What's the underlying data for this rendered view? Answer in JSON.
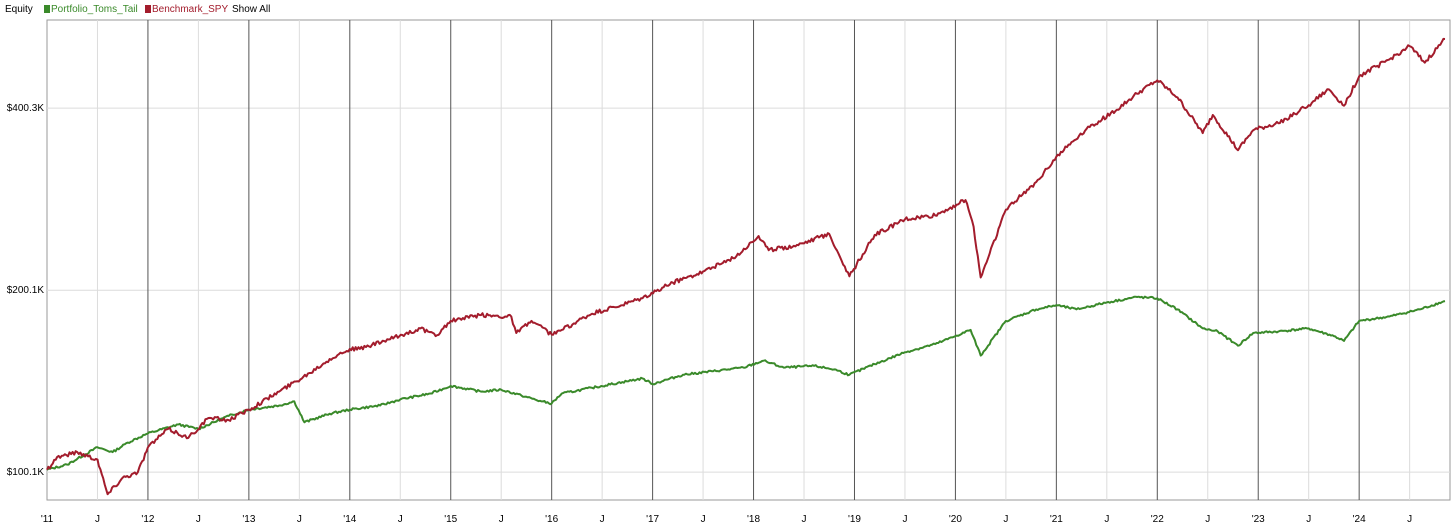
{
  "chart_data": {
    "type": "line",
    "title": "Equity",
    "legend": {
      "placement": "top-left",
      "show_all_label": "Show All"
    },
    "x_ticks": [
      "'11",
      "J",
      "'12",
      "J",
      "'13",
      "J",
      "'14",
      "J",
      "'15",
      "J",
      "'16",
      "J",
      "'17",
      "J",
      "'18",
      "J",
      "'19",
      "J",
      "'20",
      "J",
      "'21",
      "J",
      "'22",
      "J",
      "'23",
      "J",
      "'24",
      "J"
    ],
    "xlim": [
      2011.0,
      2024.9
    ],
    "y_ticks": [
      {
        "value": 100.1,
        "label": "$100.1K"
      },
      {
        "value": 200.1,
        "label": "$200.1K"
      },
      {
        "value": 400.3,
        "label": "$400.3K"
      }
    ],
    "ylim": [
      90,
      560
    ],
    "y_scale": "log",
    "grid": true,
    "series": [
      {
        "name": "Portfolio_Toms_Tail",
        "color": "#3a8a2a",
        "x": [
          2011.0,
          2011.2,
          2011.5,
          2011.65,
          2011.8,
          2012.0,
          2012.3,
          2012.5,
          2012.8,
          2013.0,
          2013.3,
          2013.45,
          2013.55,
          2013.8,
          2014.0,
          2014.3,
          2014.5,
          2014.8,
          2015.0,
          2015.3,
          2015.5,
          2015.7,
          2015.9,
          2016.0,
          2016.1,
          2016.4,
          2016.7,
          2016.9,
          2017.0,
          2017.3,
          2017.6,
          2017.9,
          2018.1,
          2018.3,
          2018.6,
          2018.8,
          2018.95,
          2019.2,
          2019.5,
          2019.8,
          2020.0,
          2020.15,
          2020.25,
          2020.5,
          2020.8,
          2021.0,
          2021.2,
          2021.5,
          2021.8,
          2022.0,
          2022.2,
          2022.45,
          2022.6,
          2022.8,
          2022.95,
          2023.2,
          2023.5,
          2023.75,
          2023.85,
          2024.0,
          2024.3,
          2024.6,
          2024.85
        ],
        "values": [
          101,
          103,
          110,
          108,
          112,
          116,
          120,
          118,
          124,
          127,
          129,
          131,
          121,
          125,
          127,
          129,
          132,
          135,
          139,
          136,
          137,
          134,
          131,
          130,
          135,
          138,
          141,
          143,
          140,
          145,
          147,
          149,
          153,
          149,
          150,
          148,
          145,
          151,
          158,
          163,
          168,
          172,
          156,
          178,
          186,
          189,
          186,
          191,
          195,
          194,
          186,
          173,
          171,
          162,
          170,
          171,
          173,
          168,
          165,
          178,
          181,
          186,
          192
        ]
      },
      {
        "name": "Benchmark_SPY",
        "color": "#a31c2c",
        "x": [
          2011.0,
          2011.1,
          2011.3,
          2011.5,
          2011.6,
          2011.75,
          2011.9,
          2012.0,
          2012.2,
          2012.4,
          2012.6,
          2012.8,
          2013.0,
          2013.3,
          2013.6,
          2013.8,
          2014.0,
          2014.1,
          2014.4,
          2014.7,
          2014.85,
          2015.0,
          2015.3,
          2015.6,
          2015.65,
          2015.8,
          2016.0,
          2016.1,
          2016.4,
          2016.7,
          2016.9,
          2017.2,
          2017.5,
          2017.8,
          2018.05,
          2018.15,
          2018.4,
          2018.75,
          2018.95,
          2019.2,
          2019.5,
          2019.8,
          2020.1,
          2020.18,
          2020.25,
          2020.5,
          2020.8,
          2021.0,
          2021.3,
          2021.6,
          2021.8,
          2022.0,
          2022.2,
          2022.45,
          2022.55,
          2022.8,
          2022.95,
          2023.2,
          2023.5,
          2023.7,
          2023.85,
          2024.0,
          2024.3,
          2024.5,
          2024.65,
          2024.85
        ],
        "values": [
          101,
          106,
          108,
          105,
          92,
          98,
          100,
          110,
          118,
          114,
          123,
          122,
          127,
          136,
          146,
          154,
          160,
          160,
          166,
          173,
          168,
          178,
          182,
          181,
          170,
          178,
          169,
          172,
          183,
          189,
          194,
          206,
          215,
          226,
          246,
          233,
          237,
          248,
          211,
          247,
          262,
          266,
          282,
          255,
          210,
          272,
          302,
          333,
          370,
          398,
          423,
          445,
          417,
          364,
          390,
          341,
          368,
          378,
          405,
          430,
          404,
          452,
          482,
          507,
          476,
          521
        ]
      }
    ]
  }
}
